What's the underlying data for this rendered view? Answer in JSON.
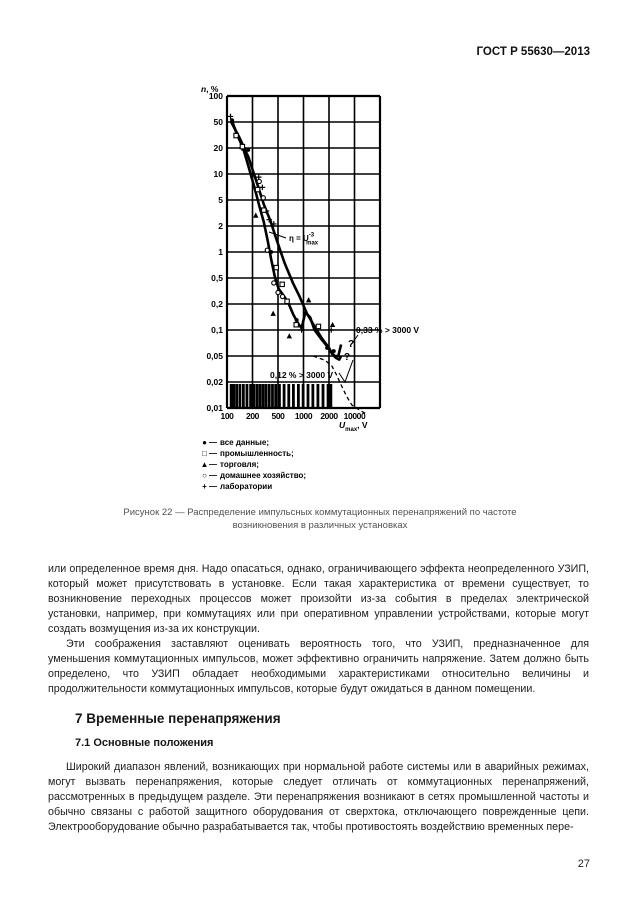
{
  "page": {
    "header": "ГОСТ Р 55630—2013",
    "page_number": "27"
  },
  "figure": {
    "caption": "Рисунок 22 — Распределение импульсных коммутационных перенапряжений по частоте возникновения в различных установках",
    "dash": "—",
    "legend": [
      {
        "glyph": "●",
        "label": "все данные;"
      },
      {
        "glyph": "□",
        "label": "промышленность;"
      },
      {
        "glyph": "▲",
        "label": "торговля;"
      },
      {
        "glyph": "○",
        "label": "домашнее хозяйство;"
      },
      {
        "glyph": "+",
        "label": "лаборатории"
      }
    ]
  },
  "chart_data": {
    "type": "scatter",
    "title": "",
    "x_axis": {
      "label_parts": [
        {
          "t": "U",
          "i": 1
        },
        {
          "t": "max",
          "dy": 3,
          "s": 6
        },
        {
          "t": ", V",
          "dy": -3
        }
      ],
      "tick_labels": [
        "100",
        "200",
        "500",
        "1000",
        "2000",
        "10000"
      ],
      "anchor_values": [
        100,
        200,
        500,
        1000,
        2000,
        10000,
        20000
      ]
    },
    "y_axis": {
      "label_parts": [
        {
          "t": "n",
          "i": 1
        },
        {
          "t": ", %"
        }
      ],
      "tick_labels": [
        "100",
        "50",
        "20",
        "10",
        "5",
        "2",
        "1",
        "0,5",
        "0,2",
        "0,1",
        "0,05",
        "0,02",
        "0,01"
      ],
      "tick_values": [
        100,
        50,
        20,
        10,
        5,
        2,
        1,
        0.5,
        0.2,
        0.1,
        0.05,
        0.02,
        0.01
      ]
    },
    "plot": {
      "x0": 34,
      "x1": 187,
      "y0": 12,
      "y1": 324
    },
    "series": [
      {
        "name": "curve-1",
        "style": "solid",
        "width": 2.6,
        "points": [
          [
            112,
            55
          ],
          [
            130,
            33
          ],
          [
            155,
            20
          ],
          [
            185,
            11
          ],
          [
            220,
            6.5
          ],
          [
            260,
            3.8
          ],
          [
            300,
            2.3
          ],
          [
            345,
            1.35
          ],
          [
            395,
            0.8
          ],
          [
            450,
            0.5
          ],
          [
            510,
            0.34
          ],
          [
            580,
            0.27
          ],
          [
            660,
            0.21
          ],
          [
            760,
            0.15
          ],
          [
            860,
            0.12
          ],
          [
            950,
            0.105
          ],
          [
            1050,
            0.16
          ],
          [
            1200,
            0.14
          ],
          [
            1350,
            0.1
          ],
          [
            1600,
            0.08
          ],
          [
            1900,
            0.065
          ],
          [
            2300,
            0.055
          ],
          [
            2900,
            0.05
          ],
          [
            3600,
            0.05
          ],
          [
            4300,
            0.068
          ]
        ]
      },
      {
        "name": "curve-2",
        "style": "solid",
        "width": 2.6,
        "points": [
          [
            112,
            50
          ],
          [
            140,
            29
          ],
          [
            180,
            15.5
          ],
          [
            230,
            8.2
          ],
          [
            300,
            4.3
          ],
          [
            380,
            2.4
          ],
          [
            480,
            1.35
          ],
          [
            600,
            0.74
          ],
          [
            750,
            0.42
          ],
          [
            900,
            0.26
          ],
          [
            1100,
            0.155
          ],
          [
            1350,
            0.11
          ],
          [
            1650,
            0.08
          ],
          [
            2000,
            0.062
          ],
          [
            2500,
            0.052
          ],
          [
            3100,
            0.047
          ],
          [
            3800,
            0.044
          ],
          [
            4300,
            0.05
          ]
        ]
      },
      {
        "name": "extrapolation-dashed",
        "style": "dashed",
        "width": 1.3,
        "points": [
          [
            1300,
            0.05
          ],
          [
            1800,
            0.043
          ],
          [
            2400,
            0.035
          ],
          [
            3200,
            0.026
          ],
          [
            4300,
            0.0185
          ],
          [
            6000,
            0.0138
          ],
          [
            8500,
            0.0108
          ],
          [
            12000,
            0.0092
          ],
          [
            14000,
            0.0085
          ]
        ]
      }
    ],
    "scatter": [
      {
        "marker": "plus",
        "points": [
          [
            110,
            58
          ],
          [
            150,
            20
          ],
          [
            250,
            9.2
          ],
          [
            285,
            7
          ],
          [
            330,
            3.4
          ],
          [
            365,
            2.5
          ],
          [
            430,
            2.15
          ],
          [
            950,
            0.1
          ],
          [
            2300,
            0.1
          ]
        ]
      },
      {
        "marker": "square",
        "points": [
          [
            128,
            31
          ],
          [
            152,
            21
          ],
          [
            240,
            6.6
          ],
          [
            300,
            3.5
          ],
          [
            470,
            0.66
          ],
          [
            560,
            0.4
          ],
          [
            640,
            0.22
          ],
          [
            820,
            0.115
          ],
          [
            1500,
            0.11
          ]
        ]
      },
      {
        "marker": "triangle",
        "points": [
          [
            225,
            2.9
          ],
          [
            420,
            0.155
          ],
          [
            680,
            0.085
          ],
          [
            1150,
            0.23
          ],
          [
            2500,
            0.115
          ]
        ]
      },
      {
        "marker": "circle",
        "points": [
          [
            255,
            8.2
          ],
          [
            295,
            5.3
          ],
          [
            340,
            1.05
          ],
          [
            430,
            0.42
          ],
          [
            500,
            0.3
          ],
          [
            565,
            0.26
          ]
        ]
      },
      {
        "marker": "dot",
        "points": [
          [
            115,
            52
          ],
          [
            178,
            19
          ],
          [
            390,
            1.0
          ],
          [
            830,
            0.13
          ],
          [
            1900,
            0.062
          ],
          [
            2700,
            0.057
          ]
        ]
      }
    ],
    "rug_values": [
      112,
      120,
      130,
      142,
      156,
      172,
      190,
      210,
      235,
      262,
      292,
      325,
      365,
      410,
      460,
      520,
      590,
      670,
      760,
      870,
      990,
      1130,
      1290,
      1480,
      1700,
      1950,
      2250
    ],
    "annotations": {
      "formula": {
        "x": 96,
        "y": 157,
        "parts": [
          {
            "t": "η = U"
          },
          {
            "t": "-3",
            "dy": -4.5,
            "s": 6
          },
          {
            "t": "max",
            "dy": 8,
            "dx": -8,
            "s": 6
          }
        ]
      },
      "texts": [
        {
          "x": 163,
          "y": 249,
          "t": "0,33 % > 3000 V",
          "s": 8.5
        },
        {
          "x": 77,
          "y": 294,
          "t": "0,12 % > 3000 V",
          "s": 8.5
        },
        {
          "x": 155,
          "y": 263,
          "t": "?",
          "s": 10
        },
        {
          "x": 151,
          "y": 276,
          "t": "?",
          "s": 10
        }
      ],
      "leaders": [
        [
          [
            165,
            251
          ],
          [
            157,
            262
          ]
        ],
        [
          [
            146,
            289
          ],
          [
            152,
            298
          ],
          [
            160,
            276
          ]
        ],
        [
          [
            93,
            154
          ],
          [
            76,
            148
          ]
        ]
      ]
    }
  },
  "content": {
    "p1": "или определенное время дня. Надо опасаться, однако, ограничивающего эффекта неопределенного УЗИП, который может присутствовать в установке. Если такая характеристика от времени существует, то возникновение переходных процессов может произойти из-за события в пределах электрической установки, например, при коммутациях или при оперативном управлении устройствами, которые могут создать возмущения из-за их конструкции.",
    "p2": "Эти соображения заставляют оценивать вероятность того, что УЗИП, предназначенное для уменьшения коммутационных импульсов, может эффективно ограничить напряжение. Затем должно быть определено, что УЗИП обладает необходимыми характеристиками относительно величины и продолжительности коммутационных импульсов, которые будут ожидаться в данном помещении.",
    "h_section": "7 Временные перенапряжения",
    "h_subsection": "7.1 Основные положения",
    "p3": "Широкий диапазон явлений, возникающих при нормальной работе системы или в аварийных режимах, могут вызвать перенапряжения, которые следует отличать от коммутационных перенапряжений, рассмотренных в предыдущем разделе. Эти перенапряжения возникают в сетях промышленной частоты и обычно связаны с работой защитного оборудования от сверхтока, отключающего поврежденные цепи. Электрооборудование обычно разрабатывается так, чтобы противостоять воздействию временных пере-"
  }
}
